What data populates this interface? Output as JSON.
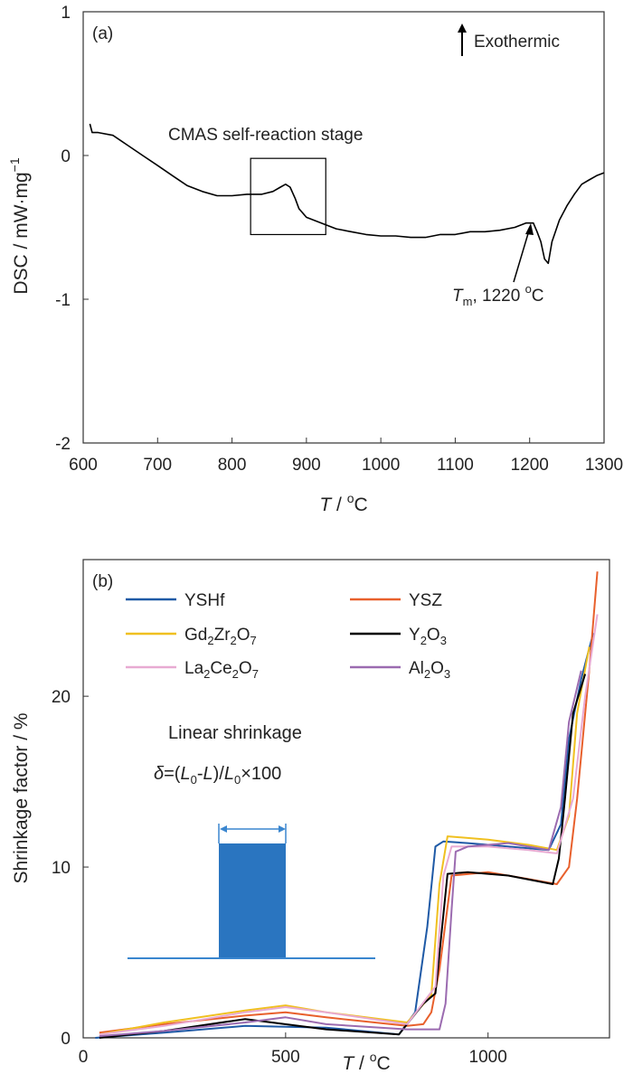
{
  "chart_data": [
    {
      "type": "line",
      "panel": "(a)",
      "xlabel": "T / oC",
      "ylabel": "DSC / mW·mg−1",
      "xlim": [
        600,
        1300
      ],
      "ylim": [
        -2,
        1
      ],
      "xticks": [
        "600",
        "700",
        "800",
        "900",
        "1000",
        "1100",
        "1200",
        "1300"
      ],
      "yticks": [
        "1",
        "0",
        "-1",
        "-2"
      ],
      "grid": false,
      "series": [
        {
          "color": "#000000",
          "x": [
            609,
            612,
            620,
            640,
            660,
            680,
            700,
            720,
            740,
            760,
            780,
            800,
            820,
            840,
            855,
            865,
            872,
            878,
            885,
            890,
            900,
            920,
            940,
            960,
            980,
            1000,
            1020,
            1040,
            1050,
            1060,
            1080,
            1100,
            1120,
            1140,
            1160,
            1180,
            1195,
            1205,
            1210,
            1215,
            1220,
            1225,
            1230,
            1240,
            1250,
            1260,
            1270,
            1280,
            1290,
            1300
          ],
          "y": [
            0.22,
            0.16,
            0.16,
            0.14,
            0.07,
            0.0,
            -0.07,
            -0.14,
            -0.21,
            -0.25,
            -0.28,
            -0.28,
            -0.27,
            -0.27,
            -0.25,
            -0.22,
            -0.2,
            -0.22,
            -0.3,
            -0.37,
            -0.43,
            -0.47,
            -0.51,
            -0.53,
            -0.55,
            -0.56,
            -0.56,
            -0.57,
            -0.57,
            -0.57,
            -0.55,
            -0.55,
            -0.53,
            -0.53,
            -0.52,
            -0.5,
            -0.47,
            -0.47,
            -0.53,
            -0.6,
            -0.72,
            -0.75,
            -0.6,
            -0.45,
            -0.35,
            -0.27,
            -0.2,
            -0.17,
            -0.14,
            -0.12
          ]
        }
      ],
      "annotations": {
        "panel_tag": "(a)",
        "exothermic": "Exothermic",
        "stage": "CMAS self-reaction stage",
        "stage_box_x": [
          825,
          926
        ],
        "stage_box_y": [
          -0.55,
          -0.02
        ],
        "tm_label": "T",
        "tm_sub": "m",
        "tm_value": ", 1220 ",
        "tm_deg": "o",
        "tm_unit": "C",
        "tm_point": [
          1210,
          -0.47
        ]
      }
    },
    {
      "type": "line",
      "panel": "(b)",
      "xlabel": "T / oC",
      "ylabel": "Shrinkage factor  / %",
      "xlim": [
        0,
        1300
      ],
      "ylim": [
        0,
        28
      ],
      "xticks": [
        "0",
        "500",
        "1000"
      ],
      "yticks": [
        "0",
        "10",
        "20"
      ],
      "grid": false,
      "series": [
        {
          "name": "YSHf",
          "color": "#1f5aa6",
          "x": [
            30,
            200,
            400,
            600,
            780,
            820,
            850,
            870,
            890,
            950,
            1050,
            1150,
            1180,
            1200,
            1230,
            1260
          ],
          "y": [
            0.0,
            0.3,
            0.7,
            0.6,
            0.2,
            1.5,
            6.5,
            11.2,
            11.5,
            11.4,
            11.2,
            11.0,
            12.5,
            17.5,
            21.0,
            23.7
          ]
        },
        {
          "name": "YSZ",
          "color": "#e8602c",
          "x": [
            40,
            200,
            400,
            500,
            600,
            800,
            840,
            860,
            880,
            910,
            1000,
            1100,
            1170,
            1200,
            1220,
            1250,
            1270
          ],
          "y": [
            0.3,
            0.8,
            1.3,
            1.5,
            1.2,
            0.7,
            0.8,
            1.5,
            4.0,
            9.5,
            9.7,
            9.3,
            9.0,
            10.0,
            14.0,
            21.5,
            27.3
          ]
        },
        {
          "name": "Gd2Zr2O7",
          "color": "#f0c020",
          "x": [
            40,
            200,
            400,
            500,
            600,
            800,
            860,
            880,
            900,
            1000,
            1100,
            1170,
            1200,
            1220,
            1250
          ],
          "y": [
            0.2,
            0.9,
            1.6,
            1.9,
            1.5,
            0.9,
            2.5,
            9.0,
            11.8,
            11.6,
            11.3,
            11.0,
            13.0,
            19.0,
            22.9
          ]
        },
        {
          "name": "Y2O3",
          "color": "#000000",
          "x": [
            40,
            200,
            400,
            600,
            780,
            840,
            870,
            900,
            950,
            1050,
            1160,
            1175,
            1190,
            1210,
            1240
          ],
          "y": [
            0.0,
            0.4,
            1.1,
            0.5,
            0.2,
            2.0,
            2.6,
            9.6,
            9.7,
            9.5,
            9.0,
            10.5,
            14.0,
            19.0,
            21.3
          ]
        },
        {
          "name": "La2Ce2O7",
          "color": "#e8aad2",
          "x": [
            40,
            200,
            400,
            500,
            600,
            800,
            870,
            890,
            910,
            1000,
            1100,
            1170,
            1210,
            1240,
            1270
          ],
          "y": [
            0.2,
            0.7,
            1.5,
            1.8,
            1.5,
            0.8,
            3.0,
            9.5,
            11.2,
            11.2,
            11.0,
            10.8,
            14.0,
            20.0,
            24.8
          ]
        },
        {
          "name": "Al2O3",
          "color": "#9b6bb0",
          "x": [
            40,
            200,
            400,
            500,
            600,
            800,
            880,
            895,
            910,
            920,
            950,
            1050,
            1150,
            1180,
            1200,
            1230
          ],
          "y": [
            0.1,
            0.4,
            0.9,
            1.2,
            0.8,
            0.5,
            0.5,
            2.0,
            7.5,
            10.9,
            11.2,
            11.4,
            11.0,
            13.5,
            18.5,
            21.5
          ]
        }
      ],
      "legend_position": "top-left",
      "inset": {
        "title": "Linear shrinkage",
        "formula_delta": "δ",
        "formula_eq": "=(",
        "formula_L0a": "L",
        "formula_sub0a": "0",
        "formula_minus": "-",
        "formula_L": "L",
        "formula_close": ")/",
        "formula_L0b": "L",
        "formula_sub0b": "0",
        "formula_times": "×100"
      },
      "annotations": {
        "panel_tag": "(b)"
      }
    }
  ],
  "legend_labels": {
    "YSHf": [
      "YSHf"
    ],
    "YSZ": [
      "YSZ"
    ],
    "Gd2Zr2O7": [
      "Gd",
      "2",
      "Zr",
      "2",
      "O",
      "7"
    ],
    "Y2O3": [
      "Y",
      "2",
      "O",
      "3"
    ],
    "La2Ce2O7": [
      "La",
      "2",
      "Ce",
      "2",
      "O",
      "7"
    ],
    "Al2O3": [
      "Al",
      "2",
      "O",
      "3"
    ]
  },
  "axis_title_parts": {
    "x_T": "T",
    "x_rest": " / ",
    "x_deg": "o",
    "x_C": "C",
    "a_y_main": "DSC / mW·mg",
    "a_y_sup": "−1",
    "b_y": "Shrinkage factor  / %"
  },
  "colors": {
    "inset_fill": "#2a75c0",
    "inset_line": "#3a86cf"
  }
}
